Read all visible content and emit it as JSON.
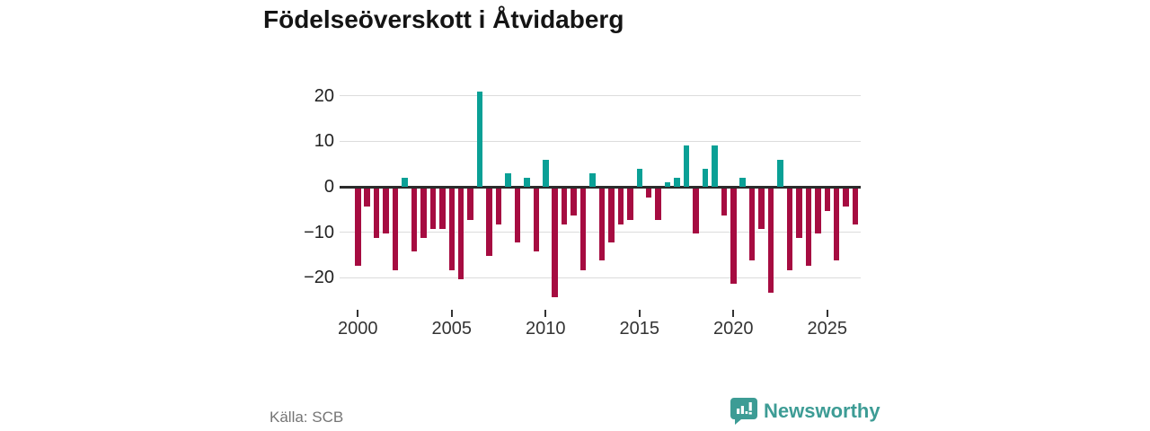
{
  "title": "Födelseöverskott i Åtvidaberg",
  "source": "Källa: SCB",
  "logo": {
    "text": "Newsworthy"
  },
  "chart_data": {
    "type": "bar",
    "title": "Födelseöverskott i Åtvidaberg",
    "x": [
      "2000H1",
      "2000H2",
      "2001H1",
      "2001H2",
      "2002H1",
      "2002H2",
      "2003H1",
      "2003H2",
      "2004H1",
      "2004H2",
      "2005H1",
      "2005H2",
      "2006H1",
      "2006H2",
      "2007H1",
      "2007H2",
      "2008H1",
      "2008H2",
      "2009H1",
      "2009H2",
      "2010H1",
      "2010H2",
      "2011H1",
      "2011H2",
      "2012H1",
      "2012H2",
      "2013H1",
      "2013H2",
      "2014H1",
      "2014H2",
      "2015H1",
      "2015H2",
      "2016H1",
      "2016H2",
      "2017H1",
      "2017H2",
      "2018H1",
      "2018H2",
      "2019H1",
      "2019H2",
      "2020H1",
      "2020H2",
      "2021H1",
      "2021H2",
      "2022H1",
      "2022H2",
      "2023H1",
      "2023H2",
      "2024H1",
      "2024H2",
      "2025H1",
      "2025H2",
      "2026H1",
      "2026H2"
    ],
    "values": [
      -17,
      -4,
      -11,
      -10,
      -18,
      2,
      -14,
      -11,
      -9,
      -9,
      -18,
      -20,
      -7,
      21,
      -15,
      -8,
      3,
      -12,
      2,
      -14,
      6,
      -24,
      -8,
      -6,
      -18,
      3,
      -16,
      -12,
      -8,
      -7,
      4,
      -2,
      -7,
      1,
      2,
      9,
      -10,
      4,
      9,
      -6,
      -21,
      2,
      -16,
      -9,
      -23,
      6,
      -18,
      -11,
      -17,
      -10,
      -5,
      -16,
      -4,
      -8
    ],
    "y_ticks": [
      20,
      10,
      0,
      -10,
      -20
    ],
    "x_tick_labels": [
      "2000",
      "2005",
      "2010",
      "2015",
      "2020",
      "2025"
    ],
    "x_tick_indices": [
      0,
      10,
      20,
      30,
      40,
      50
    ],
    "ylim": [
      -26,
      23
    ],
    "xlabel": "",
    "ylabel": "",
    "legend": "none",
    "grid": "horizontal",
    "colors": {
      "positive": "#0aa096",
      "negative": "#a60c41",
      "zero_line": "#2b2b2b",
      "gridline": "#dcdcdc"
    }
  }
}
